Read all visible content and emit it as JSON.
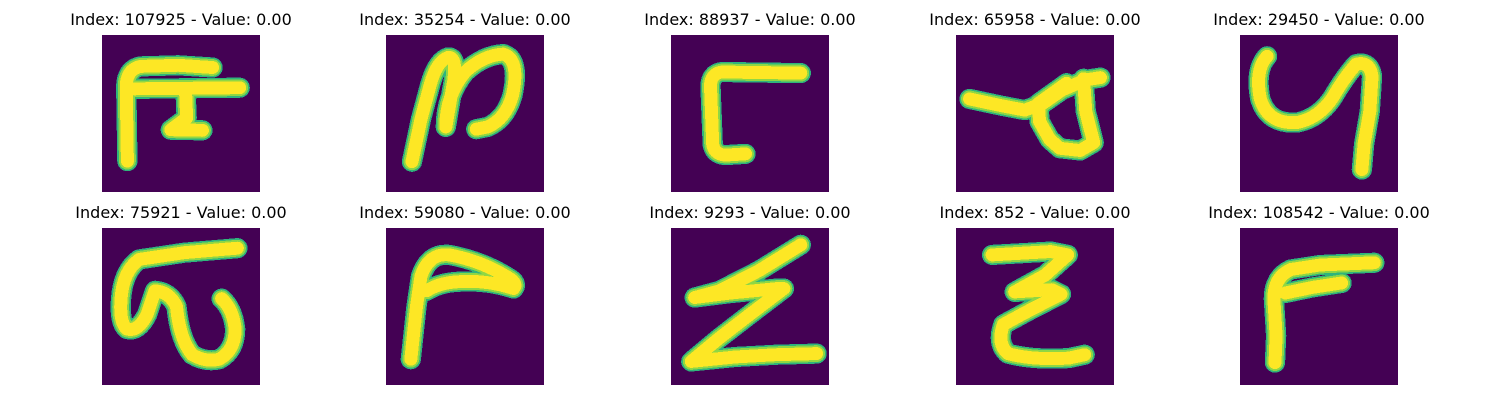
{
  "colors": {
    "background": "#440154",
    "stroke_outer": "#2fb47c",
    "stroke_mid": "#8fd744",
    "stroke_core": "#fde725"
  },
  "images": [
    {
      "title": "Index: 107925 - Value: 0.00"
    },
    {
      "title": "Index: 35254 - Value: 0.00"
    },
    {
      "title": "Index: 88937 - Value: 0.00"
    },
    {
      "title": "Index: 65958 - Value: 0.00"
    },
    {
      "title": "Index: 29450 - Value: 0.00"
    },
    {
      "title": "Index: 75921 - Value: 0.00"
    },
    {
      "title": "Index: 59080 - Value: 0.00"
    },
    {
      "title": "Index: 9293 - Value: 0.00"
    },
    {
      "title": "Index: 852 - Value: 0.00"
    },
    {
      "title": "Index: 108542 - Value: 0.00"
    }
  ]
}
